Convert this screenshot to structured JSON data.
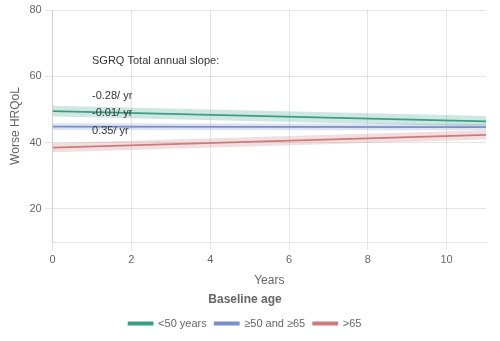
{
  "chart_data": {
    "type": "line",
    "xlabel": "Years",
    "ylabel": "Worse HRQoL",
    "x": [
      0,
      11
    ],
    "xlim": [
      0,
      11
    ],
    "ylim": [
      10,
      80
    ],
    "xticks": [
      0,
      2,
      4,
      6,
      8,
      10
    ],
    "yticks": [
      20,
      40,
      60,
      80
    ],
    "grid": true,
    "legend": "bottom",
    "legend_title": "Baseline age",
    "series": [
      {
        "name": "<50 years",
        "color": "#3a9e84",
        "values": [
          49.5,
          46.42
        ],
        "lower": [
          47.9,
          44.82
        ],
        "upper": [
          51.1,
          48.02
        ]
      },
      {
        "name": "≥50 and ≥65",
        "color": "#7b8ecc",
        "values": [
          44.8,
          44.69
        ],
        "lower": [
          43.8,
          43.69
        ],
        "upper": [
          45.8,
          45.69
        ]
      },
      {
        "name": ">65",
        "color": "#cc7a7a",
        "values": [
          38.5,
          42.35
        ],
        "lower": [
          37.1,
          40.95
        ],
        "upper": [
          39.9,
          43.75
        ]
      }
    ],
    "annotations": [
      {
        "text": "SGRQ Total annual slope:",
        "x": 1.0,
        "y": 63,
        "color": "#333333"
      },
      {
        "text": "-0.28/ yr",
        "x": 1.0,
        "y": 54.0,
        "color": "#333333"
      },
      {
        "text": "-0.01/ yr",
        "x": 1.0,
        "y": 49.0,
        "color": "#333333"
      },
      {
        "text": "0.35/ yr",
        "x": 1.0,
        "y": 43.5,
        "color": "#333333"
      }
    ]
  }
}
